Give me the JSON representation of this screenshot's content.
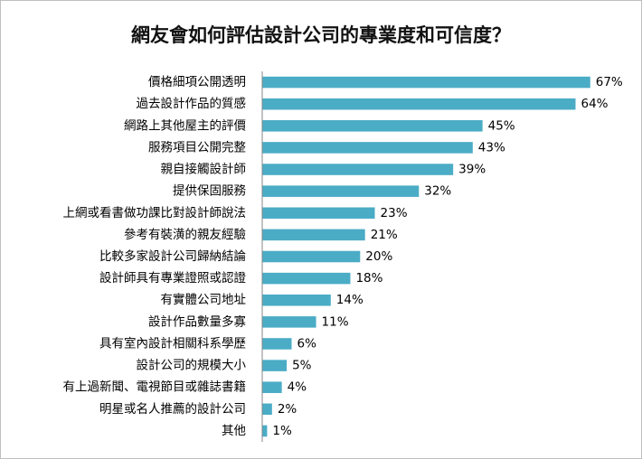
{
  "colors": {
    "bar": "#4bacc6",
    "axis": "#868686"
  },
  "chart_data": {
    "type": "bar",
    "orientation": "horizontal",
    "title": "網友會如何評估設計公司的專業度和可信度？",
    "categories": [
      "價格細項公開透明",
      "過去設計作品的質感",
      "網路上其他屋主的評價",
      "服務項目公開完整",
      "親自接觸設計師",
      "提供保固服務",
      "上網或看書做功課比對設計師說法",
      "參考有裝潢的親友經驗",
      "比較多家設計公司歸納結論",
      "設計師具有專業證照或認證",
      "有實體公司地址",
      "設計作品數量多寡",
      "具有室內設計相關科系學歷",
      "設計公司的規模大小",
      "有上過新聞、電視節目或雜誌書籍",
      "明星或名人推薦的設計公司",
      "其他"
    ],
    "values": [
      67,
      64,
      45,
      43,
      39,
      32,
      23,
      21,
      20,
      18,
      14,
      11,
      6,
      5,
      4,
      2,
      1
    ],
    "value_labels": [
      "67%",
      "64%",
      "45%",
      "43%",
      "39%",
      "32%",
      "23%",
      "21%",
      "20%",
      "18%",
      "14%",
      "11%",
      "6%",
      "5%",
      "4%",
      "2%",
      "1%"
    ],
    "xlim": [
      0,
      70
    ],
    "grid": false,
    "legend": "none"
  }
}
